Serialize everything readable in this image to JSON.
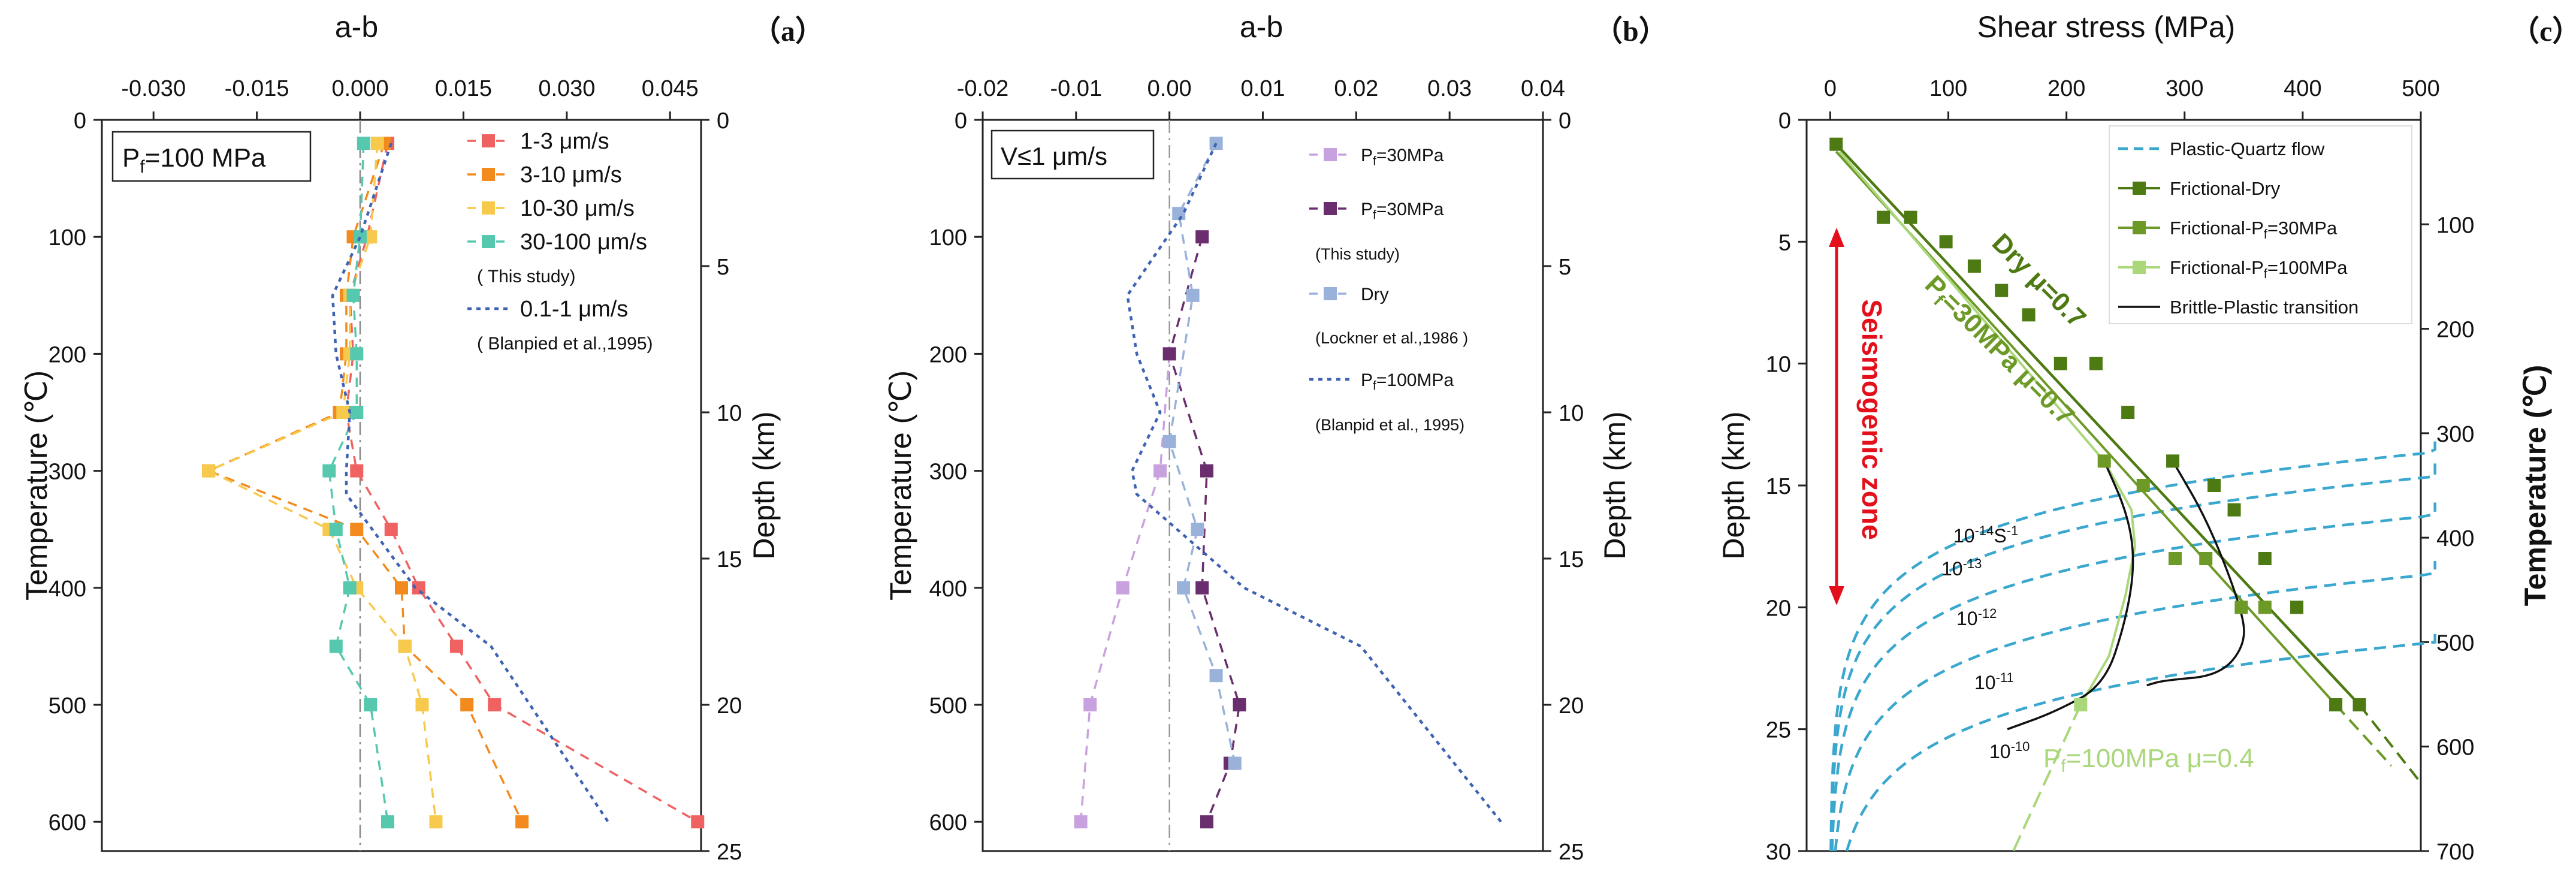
{
  "colors": {
    "c13": "#f06262",
    "c310": "#f28a1e",
    "c1030": "#f7c94c",
    "c30100": "#55c8ae",
    "blanpied": "#3f63b3",
    "b_light": "#c8a2de",
    "b_dark": "#6a2d6e",
    "b_dry": "#9ab1d9",
    "plastic": "#3aa7cf",
    "dry": "#4d7a12",
    "pf30": "#6d9a27",
    "pf100": "#a9d77a",
    "bp": "#111111"
  },
  "chart_data": [
    {
      "id": "a",
      "panel_label": "（a）",
      "type": "line",
      "xlabel": "a-b",
      "ylabel": "Temperature (℃)",
      "y2label": "Depth (km)",
      "xlim": [
        -0.0375,
        0.0495
      ],
      "ylim": [
        0,
        625
      ],
      "y2lim": [
        0,
        25
      ],
      "xticks": [
        "-0.030",
        "-0.015",
        "0.000",
        "0.015",
        "0.030",
        "0.045"
      ],
      "yticks": [
        "0",
        "100",
        "200",
        "300",
        "400",
        "500",
        "600"
      ],
      "y2ticks": [
        "0",
        "5",
        "10",
        "15",
        "20",
        "25"
      ],
      "box_label": {
        "main": "P",
        "sub": "f",
        "rest": "=100 MPa"
      },
      "legend": [
        {
          "label": "1-3 μm/s",
          "color": "c13",
          "style": "sq-dash"
        },
        {
          "label": "3-10 μm/s",
          "color": "c310",
          "style": "sq-dash"
        },
        {
          "label": "10-30 μm/s",
          "color": "c1030",
          "style": "sq-dash"
        },
        {
          "label": "30-100 μm/s",
          "color": "c30100",
          "style": "sq-dash"
        },
        {
          "label": "( This study)",
          "color": "",
          "style": "text"
        },
        {
          "label": "0.1-1 μm/s",
          "color": "blanpied",
          "style": "dot"
        },
        {
          "label": "( Blanpied et al.,1995)",
          "color": "",
          "style": "text"
        }
      ],
      "series": [
        {
          "name": "1-3 μm/s",
          "color": "c13",
          "style": "sq-dash",
          "points": [
            [
              0.004,
              20
            ],
            [
              0.001,
              100
            ],
            [
              -0.0015,
              150
            ],
            [
              -0.001,
              200
            ],
            [
              -0.002,
              250
            ],
            [
              -0.0005,
              300
            ],
            [
              0.0045,
              350
            ],
            [
              0.0085,
              400
            ],
            [
              0.014,
              450
            ],
            [
              0.0195,
              500
            ],
            [
              0.049,
              600
            ]
          ]
        },
        {
          "name": "3-10 μm/s",
          "color": "c310",
          "style": "sq-dash",
          "points": [
            [
              0.0035,
              20
            ],
            [
              -0.001,
              100
            ],
            [
              -0.002,
              150
            ],
            [
              -0.002,
              200
            ],
            [
              -0.003,
              250
            ],
            [
              -0.022,
              300
            ],
            [
              -0.0005,
              350
            ],
            [
              0.006,
              400
            ],
            [
              0.0065,
              450
            ],
            [
              0.0155,
              500
            ],
            [
              0.0235,
              600
            ]
          ]
        },
        {
          "name": "10-30 μm/s",
          "color": "c1030",
          "style": "sq-dash",
          "points": [
            [
              0.0025,
              20
            ],
            [
              0.0015,
              100
            ],
            [
              -0.0015,
              150
            ],
            [
              -0.0015,
              200
            ],
            [
              -0.0025,
              250
            ],
            [
              -0.022,
              300
            ],
            [
              -0.0045,
              350
            ],
            [
              -0.0005,
              400
            ],
            [
              0.0065,
              450
            ],
            [
              0.009,
              500
            ],
            [
              0.011,
              600
            ]
          ]
        },
        {
          "name": "30-100 μm/s",
          "color": "c30100",
          "style": "sq-dash",
          "points": [
            [
              0.0005,
              20
            ],
            [
              0.0,
              100
            ],
            [
              -0.001,
              150
            ],
            [
              -0.0005,
              200
            ],
            [
              -0.0005,
              250
            ],
            [
              -0.0045,
              300
            ],
            [
              -0.0035,
              350
            ],
            [
              -0.0015,
              400
            ],
            [
              -0.0035,
              450
            ],
            [
              0.0015,
              500
            ],
            [
              0.004,
              600
            ]
          ]
        },
        {
          "name": "0.1-1 μm/s",
          "color": "blanpied",
          "style": "dot",
          "points": [
            [
              0.0045,
              20
            ],
            [
              0.0,
              100
            ],
            [
              -0.004,
              150
            ],
            [
              -0.0035,
              200
            ],
            [
              -0.0015,
              250
            ],
            [
              -0.002,
              300
            ],
            [
              -0.002,
              320
            ],
            [
              0.008,
              400
            ],
            [
              0.019,
              450
            ],
            [
              0.036,
              600
            ]
          ]
        }
      ]
    },
    {
      "id": "b",
      "panel_label": "（b）",
      "type": "line",
      "xlabel": "a-b",
      "ylabel": "Temperature (℃)",
      "y2label": "Depth (km)",
      "xlim": [
        -0.02,
        0.04
      ],
      "ylim": [
        0,
        625
      ],
      "y2lim": [
        0,
        25
      ],
      "xticks": [
        "-0.02",
        "-0.01",
        "0.00",
        "0.01",
        "0.02",
        "0.03",
        "0.04"
      ],
      "yticks": [
        "0",
        "100",
        "200",
        "300",
        "400",
        "500",
        "600"
      ],
      "y2ticks": [
        "0",
        "5",
        "10",
        "15",
        "20",
        "25"
      ],
      "box_label": {
        "main": "V≤1 μm/s",
        "sub": "",
        "rest": ""
      },
      "legend": [
        {
          "label": "=30MPa",
          "prefix": "P",
          "sub": "f",
          "color": "b_light",
          "style": "sq-dash"
        },
        {
          "label": "=30MPa",
          "prefix": "P",
          "sub": "f",
          "color": "b_dark",
          "style": "sq-dash"
        },
        {
          "label": "(This study)",
          "color": "",
          "style": "text"
        },
        {
          "label": "Dry",
          "color": "b_dry",
          "style": "sq-dash"
        },
        {
          "label": "(Lockner et al.,1986 )",
          "color": "",
          "style": "text"
        },
        {
          "label": "=100MPa",
          "prefix": "P",
          "sub": "f",
          "color": "blanpied",
          "style": "dot"
        },
        {
          "label": "(Blanpid et al., 1995)",
          "color": "",
          "style": "text"
        }
      ],
      "series": [
        {
          "name": "Pf=30MPa (light)",
          "color": "b_light",
          "style": "sq-dash",
          "points": [
            [
              0.0,
              200
            ],
            [
              -0.001,
              300
            ],
            [
              -0.005,
              400
            ],
            [
              -0.0085,
              500
            ],
            [
              -0.0095,
              600
            ]
          ]
        },
        {
          "name": "Pf=30MPa (dark)",
          "color": "b_dark",
          "style": "sq-dash",
          "points": [
            [
              0.0035,
              100
            ],
            [
              0.0,
              200
            ],
            [
              0.004,
              300
            ],
            [
              0.0035,
              400
            ],
            [
              0.0075,
              500
            ],
            [
              0.0065,
              550
            ],
            [
              0.004,
              600
            ]
          ]
        },
        {
          "name": "Dry",
          "color": "b_dry",
          "style": "sq-dash",
          "points": [
            [
              0.005,
              20
            ],
            [
              0.001,
              80
            ],
            [
              0.0025,
              150
            ],
            [
              0.0,
              275
            ],
            [
              0.003,
              350
            ],
            [
              0.0015,
              400
            ],
            [
              0.005,
              475
            ],
            [
              0.007,
              550
            ]
          ]
        },
        {
          "name": "Pf=100MPa",
          "color": "blanpied",
          "style": "dot",
          "points": [
            [
              0.005,
              20
            ],
            [
              0.0015,
              80
            ],
            [
              -0.0045,
              150
            ],
            [
              -0.0035,
              200
            ],
            [
              -0.001,
              250
            ],
            [
              -0.004,
              300
            ],
            [
              -0.0035,
              320
            ],
            [
              0.008,
              400
            ],
            [
              0.0205,
              450
            ],
            [
              0.0355,
              600
            ]
          ]
        }
      ]
    },
    {
      "id": "c",
      "panel_label": "（c）",
      "type": "line",
      "xlabel": "Shear stress (MPa)",
      "ylabel": "Depth (km)",
      "y2label": "Temperature (℃)",
      "xlim": [
        -20,
        500
      ],
      "ylim": [
        0,
        30
      ],
      "y2lim": [
        0,
        700
      ],
      "xticks": [
        "0",
        "100",
        "200",
        "300",
        "400",
        "500"
      ],
      "yticks": [
        "0",
        "5",
        "10",
        "15",
        "20",
        "25",
        "30"
      ],
      "y2ticks": [
        "100",
        "200",
        "300",
        "400",
        "500",
        "600",
        "700"
      ],
      "legend": [
        {
          "label": "Plastic-Quartz flow",
          "color": "plastic",
          "style": "dash"
        },
        {
          "label": "Frictional-Dry",
          "color": "dry",
          "style": "sq-solid"
        },
        {
          "label": "Frictional-",
          "prefix": "",
          "sub": "f",
          "subprefix": "P",
          "tail": "=30MPa",
          "color": "pf30",
          "style": "sq-solid"
        },
        {
          "label": "Frictional-",
          "prefix": "",
          "sub": "f",
          "subprefix": "P",
          "tail": "=100MPa",
          "color": "pf100",
          "style": "sq-solid"
        },
        {
          "label": "Brittle-Plastic transition",
          "color": "bp",
          "style": "solid"
        }
      ],
      "annotations": {
        "dry": "Dry  μ=0.7",
        "pf30_main": "P",
        "pf30_sub": "f",
        "pf30_rest": "=30MPa  μ=0.7",
        "pf100_main": "P",
        "pf100_sub": "f",
        "pf100_rest": "=100MPa  μ=0.4",
        "seismo": "Seismogenic zone",
        "rates": [
          {
            "base": "10",
            "exp": "-14",
            "unit": "S",
            "unitexp": "-1"
          },
          {
            "base": "10",
            "exp": "-13",
            "unit": "",
            "unitexp": ""
          },
          {
            "base": "10",
            "exp": "-12",
            "unit": "",
            "unitexp": ""
          },
          {
            "base": "10",
            "exp": "-11",
            "unit": "",
            "unitexp": ""
          },
          {
            "base": "10",
            "exp": "-10",
            "unit": "",
            "unitexp": ""
          }
        ]
      },
      "series": [
        {
          "name": "Frictional-Dry",
          "color": "dry",
          "points": [
            [
              5,
              1
            ],
            [
              45,
              4
            ],
            [
              68,
              4
            ],
            [
              98,
              5
            ],
            [
              122,
              6
            ],
            [
              145,
              7
            ],
            [
              168,
              8
            ],
            [
              195,
              10
            ],
            [
              225,
              10
            ],
            [
              252,
              12
            ],
            [
              290,
              14
            ],
            [
              325,
              15
            ],
            [
              342,
              16
            ],
            [
              368,
              18
            ],
            [
              395,
              20
            ],
            [
              428,
              24
            ],
            [
              448,
              24
            ]
          ]
        },
        {
          "name": "Frictional-Pf=30MPa",
          "color": "pf30",
          "points": [
            [
              232,
              14
            ],
            [
              265,
              15
            ],
            [
              292,
              18
            ],
            [
              318,
              18
            ],
            [
              348,
              20
            ],
            [
              368,
              20
            ]
          ]
        },
        {
          "name": "Frictional-Pf=100MPa",
          "color": "pf100",
          "points": [
            [
              212,
              24
            ]
          ]
        },
        {
          "name": "Plastic-Quartz flow",
          "color": "plastic",
          "rates": [
            "1e-14",
            "1e-13",
            "1e-12",
            "1e-11",
            "1e-10"
          ]
        }
      ]
    }
  ]
}
